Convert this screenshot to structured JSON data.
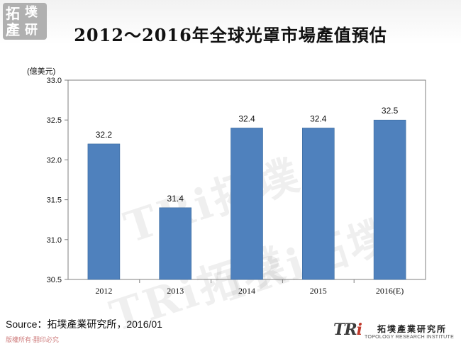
{
  "title": "2012～2016年全球光罩市場產值預估",
  "logo_top_left": {
    "chars": [
      "拓",
      "墣",
      "產",
      "研"
    ]
  },
  "watermark_text": "TRi拓墣",
  "source": "Source：拓墣產業研究所，2016/01",
  "copyright": "版權所有‧翻印必究",
  "logo_bottom_right": {
    "mark": "TR",
    "mark_i": "i",
    "name": "拓墣產業研究所",
    "english": "TOPOLOGY RESEARCH INSTITUTE"
  },
  "chart_data": {
    "type": "bar",
    "categories": [
      "2012",
      "2013",
      "2014",
      "2015",
      "2016(E)"
    ],
    "values": [
      32.2,
      31.4,
      32.4,
      32.4,
      32.5
    ],
    "data_labels": [
      "32.2",
      "31.4",
      "32.4",
      "32.4",
      "32.5"
    ],
    "unit_label": "(億美元)",
    "ylim": [
      30.5,
      33.0
    ],
    "yticks": [
      "30.5",
      "31.0",
      "31.5",
      "32.0",
      "32.5",
      "33.0"
    ],
    "bar_color": "#4f81bd",
    "grid": false,
    "legend": "none"
  }
}
